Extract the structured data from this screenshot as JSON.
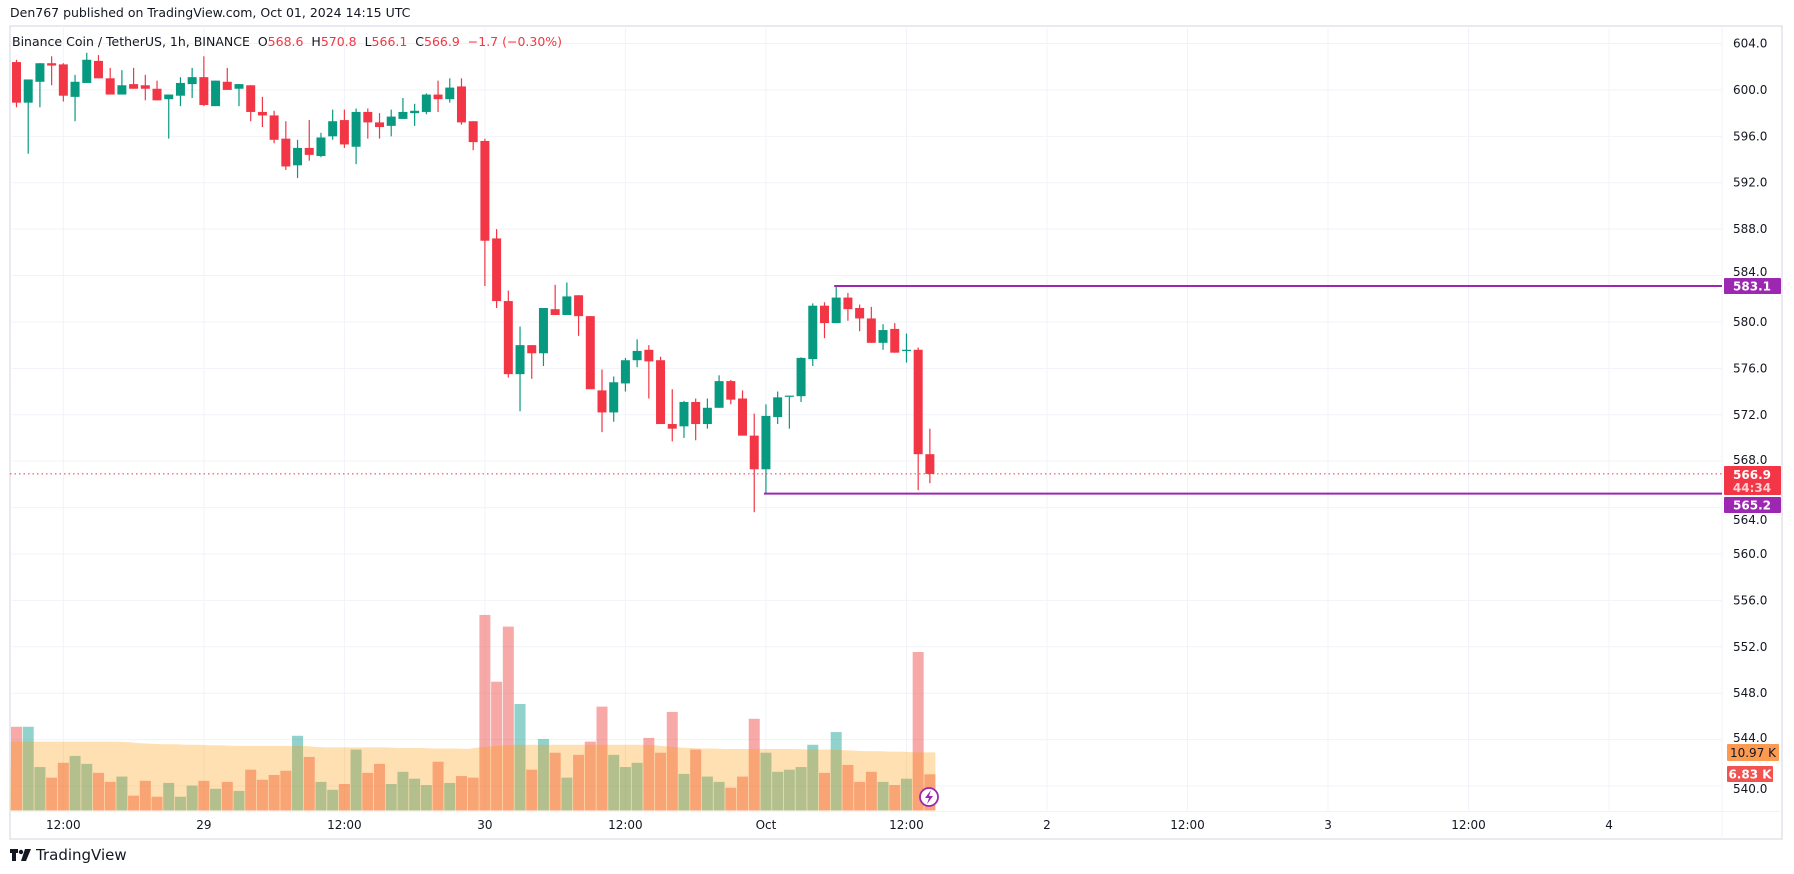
{
  "publish_line": "Den767 published on TradingView.com, Oct 01, 2024 14:15 UTC",
  "legend": {
    "symbol": "Binance Coin / TetherUS, 1h, BINANCE",
    "o_label": "O",
    "o_value": "568.6",
    "h_label": "H",
    "h_value": "570.8",
    "l_label": "L",
    "l_value": "566.1",
    "c_label": "C",
    "c_value": "566.9",
    "change": "−1.7 (−0.30%)"
  },
  "footer": {
    "brand": "TradingView",
    "logo_icon": "tradingview-logo-icon"
  },
  "colors": {
    "up": "#089981",
    "down": "#f23645",
    "line": "#9c27b0",
    "vol_ma": "#ff9800",
    "vol_up": "rgba(38,166,154,0.5)",
    "vol_down": "rgba(239,83,80,0.5)"
  },
  "chart_data": {
    "type": "candlestick",
    "title": "Binance Coin / TetherUS, 1h, BINANCE",
    "interval": "1h",
    "first_candle": "Sep 28 08:00",
    "ylim": [
      540,
      604
    ],
    "y_ticks": [
      "540.0",
      "544.0",
      "548.0",
      "552.0",
      "556.0",
      "560.0",
      "564.0",
      "568.0",
      "572.0",
      "576.0",
      "580.0",
      "584.0",
      "588.0",
      "592.0",
      "596.0",
      "600.0",
      "604.0"
    ],
    "x_ticks": [
      {
        "label": "12:00",
        "hour": 4
      },
      {
        "label": "29",
        "hour": 16
      },
      {
        "label": "12:00",
        "hour": 28
      },
      {
        "label": "30",
        "hour": 40
      },
      {
        "label": "12:00",
        "hour": 52
      },
      {
        "label": "Oct",
        "hour": 64
      },
      {
        "label": "12:00",
        "hour": 76
      },
      {
        "label": "2",
        "hour": 88
      },
      {
        "label": "12:00",
        "hour": 100
      },
      {
        "label": "3",
        "hour": 112
      },
      {
        "label": "12:00",
        "hour": 124
      },
      {
        "label": "4",
        "hour": 136
      }
    ],
    "ohlc": [
      [
        602.4,
        602.6,
        598.5,
        598.9
      ],
      [
        598.9,
        600.9,
        594.5,
        600.9
      ],
      [
        600.7,
        602.3,
        598.5,
        602.3
      ],
      [
        602.3,
        602.9,
        600.4,
        602.1
      ],
      [
        602.2,
        602.3,
        599.0,
        599.5
      ],
      [
        599.4,
        601.3,
        597.3,
        600.7
      ],
      [
        600.6,
        603.2,
        600.6,
        602.6
      ],
      [
        602.5,
        603.0,
        601.0,
        601.0
      ],
      [
        601.0,
        601.9,
        599.6,
        599.6
      ],
      [
        599.6,
        601.7,
        599.6,
        600.4
      ],
      [
        600.5,
        601.9,
        600.1,
        600.1
      ],
      [
        600.4,
        601.3,
        599.1,
        600.1
      ],
      [
        600.1,
        600.8,
        599.1,
        599.1
      ],
      [
        599.2,
        599.6,
        595.8,
        599.6
      ],
      [
        599.5,
        601.1,
        598.6,
        600.6
      ],
      [
        600.5,
        601.9,
        599.3,
        601.1
      ],
      [
        601.1,
        602.9,
        598.6,
        598.7
      ],
      [
        598.6,
        600.8,
        598.6,
        600.8
      ],
      [
        600.7,
        601.9,
        600.0,
        600.0
      ],
      [
        600.1,
        600.5,
        598.6,
        600.5
      ],
      [
        600.4,
        600.4,
        597.3,
        598.1
      ],
      [
        598.1,
        599.4,
        596.8,
        597.8
      ],
      [
        597.8,
        598.2,
        595.4,
        595.7
      ],
      [
        595.8,
        597.3,
        593.1,
        593.4
      ],
      [
        593.5,
        595.7,
        592.4,
        595.0
      ],
      [
        595.0,
        597.4,
        593.9,
        594.4
      ],
      [
        594.3,
        596.3,
        594.2,
        595.9
      ],
      [
        596.0,
        598.3,
        595.7,
        597.3
      ],
      [
        597.4,
        598.3,
        595.0,
        595.3
      ],
      [
        595.1,
        598.4,
        593.6,
        598.1
      ],
      [
        598.1,
        598.4,
        595.8,
        597.2
      ],
      [
        597.2,
        598.0,
        595.8,
        596.8
      ],
      [
        596.9,
        598.3,
        596.0,
        597.7
      ],
      [
        597.5,
        599.3,
        597.5,
        598.1
      ],
      [
        598.0,
        598.8,
        596.9,
        598.2
      ],
      [
        598.1,
        599.7,
        597.9,
        599.6
      ],
      [
        599.6,
        600.8,
        598.1,
        599.2
      ],
      [
        599.2,
        601.0,
        598.9,
        600.2
      ],
      [
        600.3,
        601.0,
        597.0,
        597.2
      ],
      [
        597.3,
        597.3,
        594.8,
        595.5
      ],
      [
        595.6,
        595.8,
        583.1,
        587.0
      ],
      [
        587.2,
        588.0,
        581.2,
        581.8
      ],
      [
        581.8,
        582.7,
        575.2,
        575.5
      ],
      [
        575.5,
        579.6,
        572.3,
        578.0
      ],
      [
        578.0,
        578.0,
        575.1,
        577.3
      ],
      [
        577.3,
        581.2,
        576.2,
        581.2
      ],
      [
        581.1,
        583.2,
        580.6,
        580.6
      ],
      [
        580.6,
        583.4,
        580.6,
        582.2
      ],
      [
        582.3,
        582.3,
        578.8,
        580.5
      ],
      [
        580.5,
        580.5,
        574.2,
        574.2
      ],
      [
        574.1,
        575.9,
        570.5,
        572.2
      ],
      [
        572.2,
        575.3,
        571.4,
        574.8
      ],
      [
        574.7,
        576.9,
        574.0,
        576.7
      ],
      [
        576.7,
        578.5,
        576.1,
        577.5
      ],
      [
        577.6,
        578.0,
        573.4,
        576.6
      ],
      [
        576.7,
        577.0,
        571.2,
        571.2
      ],
      [
        571.2,
        574.2,
        569.7,
        570.8
      ],
      [
        571.0,
        573.2,
        570.0,
        573.1
      ],
      [
        573.1,
        573.4,
        569.8,
        571.2
      ],
      [
        571.2,
        573.4,
        570.8,
        572.6
      ],
      [
        572.6,
        575.4,
        572.6,
        574.9
      ],
      [
        574.9,
        575.0,
        572.9,
        573.3
      ],
      [
        573.4,
        574.1,
        570.2,
        570.2
      ],
      [
        570.2,
        572.1,
        563.6,
        567.3
      ],
      [
        567.3,
        572.9,
        565.2,
        571.9
      ],
      [
        571.8,
        574.0,
        571.2,
        573.5
      ],
      [
        573.6,
        573.6,
        570.8,
        573.65
      ],
      [
        573.6,
        576.95,
        573.1,
        576.9
      ],
      [
        576.8,
        581.6,
        576.2,
        581.4
      ],
      [
        581.4,
        581.7,
        578.6,
        579.9
      ],
      [
        579.9,
        583.1,
        579.9,
        582.1
      ],
      [
        582.1,
        582.5,
        580.1,
        581.1
      ],
      [
        581.2,
        581.5,
        579.2,
        580.3
      ],
      [
        580.3,
        581.3,
        578.2,
        578.2
      ],
      [
        578.2,
        579.8,
        577.6,
        579.3
      ],
      [
        579.4,
        579.9,
        577.35,
        577.35
      ],
      [
        577.5,
        579.0,
        576.5,
        577.6
      ],
      [
        577.6,
        577.8,
        565.5,
        568.6
      ],
      [
        568.6,
        570.8,
        566.1,
        566.9
      ]
    ],
    "volume_k": [
      15.8,
      15.8,
      8.2,
      6.2,
      9.0,
      10.3,
      8.8,
      7.1,
      5.4,
      6.4,
      2.8,
      5.6,
      2.6,
      5.2,
      2.6,
      4.7,
      5.6,
      4.1,
      5.4,
      3.7,
      7.7,
      5.8,
      6.7,
      7.5,
      14.1,
      10.1,
      5.4,
      3.9,
      5.0,
      11.5,
      7.1,
      8.8,
      5.0,
      7.3,
      6.0,
      4.8,
      9.2,
      5.2,
      6.5,
      6.2,
      36.9,
      24.3,
      34.7,
      20.1,
      7.7,
      13.5,
      10.9,
      6.2,
      10.5,
      13.0,
      19.6,
      10.5,
      8.2,
      9.0,
      13.7,
      10.9,
      18.6,
      6.9,
      11.5,
      6.4,
      5.4,
      4.3,
      6.4,
      17.3,
      10.9,
      7.3,
      7.7,
      8.2,
      12.4,
      7.1,
      14.8,
      8.6,
      5.4,
      7.3,
      5.4,
      4.8,
      6.0,
      29.9,
      6.83
    ],
    "volume_ma_k": [
      13.0,
      13.0,
      13.0,
      13.0,
      13.0,
      13.0,
      13.0,
      13.0,
      13.0,
      13.0,
      12.9,
      12.7,
      12.6,
      12.5,
      12.5,
      12.4,
      12.4,
      12.3,
      12.3,
      12.2,
      12.2,
      12.2,
      12.2,
      12.2,
      12.2,
      12.2,
      12.0,
      11.9,
      11.9,
      11.9,
      11.9,
      11.9,
      11.9,
      11.8,
      11.8,
      11.8,
      11.7,
      11.7,
      11.7,
      11.6,
      11.9,
      12.1,
      12.3,
      12.4,
      12.4,
      12.4,
      12.4,
      12.4,
      12.4,
      12.4,
      12.4,
      12.4,
      12.4,
      12.4,
      12.4,
      12.3,
      12.1,
      11.9,
      11.8,
      11.7,
      11.7,
      11.6,
      11.6,
      11.6,
      11.6,
      11.6,
      11.6,
      11.6,
      11.5,
      11.5,
      11.5,
      11.4,
      11.3,
      11.2,
      11.2,
      11.1,
      11.1,
      11.0,
      10.97
    ],
    "horizontal_lines": [
      {
        "name": "resistance-line",
        "price": 583.1,
        "label": "583.1",
        "start_candle": 71
      },
      {
        "name": "support-line",
        "price": 565.2,
        "label": "565.2",
        "start_candle": 65
      }
    ],
    "last_price": {
      "price": 566.9,
      "label": "566.9",
      "countdown": "44:34"
    },
    "volume_labels": {
      "ma": "10.97 K",
      "last": "6.83 K"
    }
  }
}
